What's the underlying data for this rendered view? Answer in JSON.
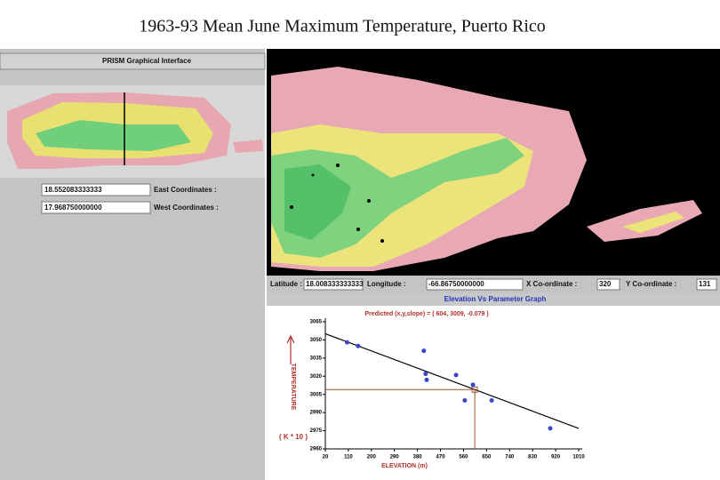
{
  "title": "1963-93 Mean June Maximum Temperature, Puerto Rico",
  "left_panel": {
    "title": "PRISM Graphical Interface",
    "fields": [
      {
        "value": "18.552083333333",
        "label": "East Coordinates :"
      },
      {
        "value": "17.968750000000",
        "label": "West Coordinates :"
      }
    ]
  },
  "status_bar": {
    "fields": [
      {
        "label": "Latitude :",
        "value": "18.008333333333"
      },
      {
        "label": "Longitude :",
        "value": "-66.86750000000"
      },
      {
        "label": "X Co-ordinate :",
        "value": "320"
      },
      {
        "label": "Y Co-ordinate :",
        "value": "131"
      }
    ]
  },
  "chart_data": {
    "type": "scatter",
    "title": "Elevation Vs Parameter Graph",
    "subtitle": "Predicted (x,y,slope) = ( 604, 3009, -0.079 )",
    "predicted": {
      "x": 604,
      "y": 3009,
      "slope": -0.079
    },
    "x_label": "ELEVATION (m)",
    "y_label": "TEMPERATURE",
    "y_unit": "( K * 10 )",
    "x": [
      105,
      148,
      405,
      412,
      416,
      531,
      597,
      565,
      670,
      899
    ],
    "values": [
      3048,
      3045,
      3041,
      3022,
      3017,
      3021,
      3013,
      3000,
      3000,
      2977
    ],
    "color": "#3a46c8",
    "xlim": [
      20,
      1010
    ],
    "xticks": [
      20,
      110,
      200,
      290,
      380,
      470,
      560,
      650,
      740,
      830,
      920,
      1010
    ],
    "ylim": [
      2960,
      3065
    ],
    "yticks": [
      2960,
      2975,
      2990,
      3005,
      3020,
      3035,
      3050,
      3065
    ]
  }
}
